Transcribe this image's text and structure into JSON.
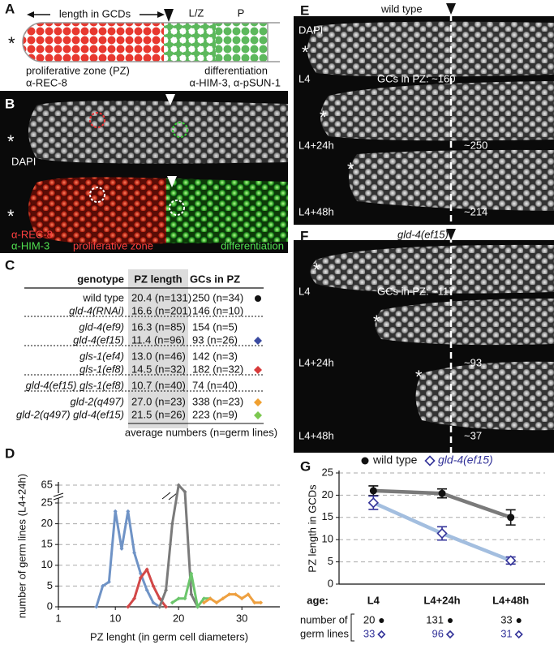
{
  "panel_labels": [
    "A",
    "B",
    "C",
    "D",
    "E",
    "F",
    "G"
  ],
  "asterisk": "*",
  "schematic": {
    "length_label": "length in GCDs",
    "lz": "L/Z",
    "p": "P",
    "pz": "proliferative zone (PZ)",
    "pz_marker": "α-REC-8",
    "diff": "differentiation",
    "diff_markers": "α-HIM-3, α-pSUN-1"
  },
  "staining": {
    "dapi": "DAPI",
    "rec8": "α-REC-8",
    "him3": "α-HIM-3",
    "pz": "proliferative zone",
    "diff": "differentiation"
  },
  "table": {
    "header": [
      "genotype",
      "PZ length",
      "GCs in PZ"
    ],
    "groups": [
      [
        {
          "cells": [
            "wild type",
            "20.4 (n=131)",
            "250 (n=34)"
          ],
          "marker": "circle",
          "marker_color": "#111111"
        },
        {
          "cells": [
            "gld-4(RNAi)",
            "16.6 (n=201)",
            "146 (n=10)"
          ]
        }
      ],
      [
        {
          "cells": [
            "gld-4(ef9)",
            "16.3 (n=85)",
            "154 (n=5)"
          ]
        },
        {
          "cells": [
            "gld-4(ef15)",
            "11.4 (n=96)",
            "93 (n=26)"
          ],
          "marker": "diamond",
          "marker_color": "#3a4aa0"
        }
      ],
      [
        {
          "cells": [
            "gls-1(ef4)",
            "13.0 (n=46)",
            "142 (n=3)"
          ]
        },
        {
          "cells": [
            "gls-1(ef8)",
            "14.5 (n=32)",
            "182 (n=32)"
          ],
          "marker": "diamond",
          "marker_color": "#d83a3a"
        }
      ],
      [
        {
          "cells": [
            "gld-4(ef15) gls-1(ef8)",
            "10.7 (n=40)",
            "74 (n=40)"
          ]
        }
      ],
      [
        {
          "cells": [
            "gld-2(q497)",
            "27.0 (n=23)",
            "338 (n=23)"
          ],
          "marker": "diamond",
          "marker_color": "#f0a030"
        },
        {
          "cells": [
            "gld-2(q497) gld-4(ef15)",
            "21.5 (n=26)",
            "223 (n=9)"
          ],
          "marker": "diamond",
          "marker_color": "#7cc850"
        }
      ]
    ],
    "footer": "average numbers (n=germ lines)"
  },
  "timecourse": [
    {
      "title": "wild type",
      "stain": "DAPI",
      "rows": [
        {
          "stage": "L4",
          "count": "GCs in PZ: ~160"
        },
        {
          "stage": "L4+24h",
          "count": "~250"
        },
        {
          "stage": "L4+48h",
          "count": "~214"
        }
      ]
    },
    {
      "title": "gld-4(ef15)",
      "rows": [
        {
          "stage": "L4",
          "count": "GCs in PZ: ~117"
        },
        {
          "stage": "L4+24h",
          "count": "~93"
        },
        {
          "stage": "L4+48h",
          "count": "~37"
        }
      ]
    }
  ],
  "chart_data": [
    {
      "type": "line",
      "xlabel": "PZ lenght (in germ cell diameters)",
      "ylabel": "number of germ lines (L4+24h)",
      "xlim": [
        1,
        36
      ],
      "xticks": [
        1,
        10,
        20,
        30
      ],
      "ylim": [
        0,
        65
      ],
      "yticks": [
        0,
        5,
        10,
        15,
        20,
        25,
        65
      ],
      "ybreak": true,
      "grid": true,
      "series": [
        {
          "color": "#6f93c6",
          "x": [
            7,
            8,
            9,
            10,
            11,
            12,
            13,
            14,
            15,
            16,
            17
          ],
          "values": [
            0,
            5,
            6,
            23,
            14,
            23,
            13,
            8,
            4,
            1,
            0
          ]
        },
        {
          "color": "#d24848",
          "x": [
            12,
            13,
            14,
            15,
            16,
            17,
            18
          ],
          "values": [
            0,
            2,
            7,
            9,
            5,
            2,
            0
          ]
        },
        {
          "color": "#7a7a7a",
          "x": [
            17,
            18,
            19,
            20,
            21,
            22,
            23
          ],
          "values": [
            0,
            4,
            20,
            65,
            50,
            3,
            0
          ]
        },
        {
          "color": "#6cc66c",
          "x": [
            19,
            20,
            21,
            22,
            23,
            24,
            25
          ],
          "values": [
            1,
            2,
            2,
            8,
            0,
            2,
            2
          ]
        },
        {
          "color": "#eea040",
          "x": [
            24,
            25,
            26,
            27,
            28,
            29,
            30,
            31,
            32,
            33
          ],
          "values": [
            1,
            2,
            1,
            2,
            3,
            3,
            2,
            3,
            1,
            1
          ]
        }
      ]
    },
    {
      "type": "errorline",
      "ylabel": "PZ length in GCDs",
      "xlabel": "age:",
      "n_label": [
        "number of",
        "germ lines"
      ],
      "categories": [
        "L4",
        "L4+24h",
        "L4+48h"
      ],
      "ylim": [
        0,
        25
      ],
      "yticks": [
        0,
        5,
        10,
        15,
        20,
        25
      ],
      "grid": true,
      "series": [
        {
          "name": "wild type",
          "color": "#111111",
          "line_color": "#7a7a7a",
          "marker": "circle",
          "values": [
            21,
            20.4,
            15
          ],
          "errors": [
            1.1,
            1.0,
            1.7
          ],
          "n": [
            20,
            131,
            33
          ]
        },
        {
          "name": "gld-4(ef15)",
          "color": "#333399",
          "line_color": "#a3bedf",
          "marker": "diamond",
          "values": [
            18.3,
            11.4,
            5.3
          ],
          "errors": [
            1.5,
            1.5,
            0.8
          ],
          "n": [
            33,
            96,
            31
          ]
        }
      ]
    }
  ]
}
